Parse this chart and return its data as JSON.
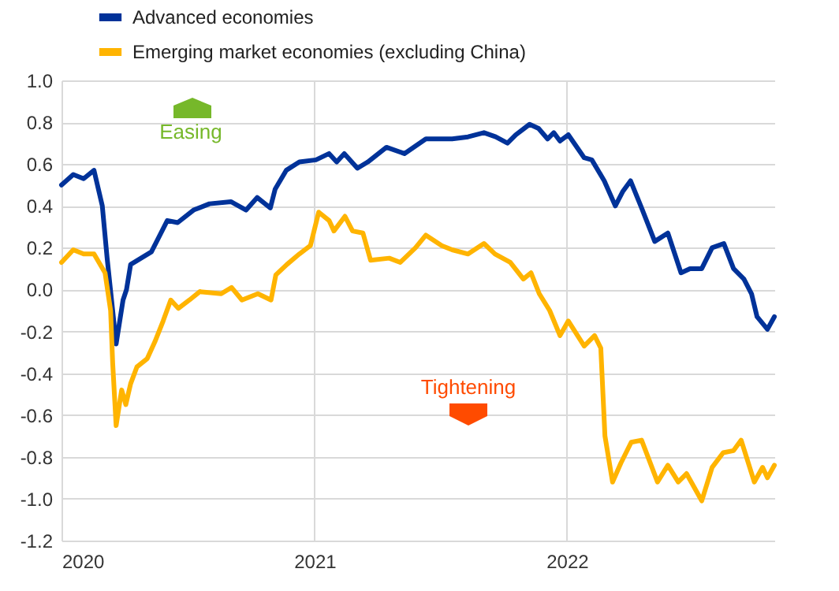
{
  "chart_data": {
    "type": "line",
    "xlim": [
      "2020-01-01",
      "2022-10-28"
    ],
    "xticks": [
      "2020",
      "2021",
      "2022"
    ],
    "ylim": [
      -1.2,
      1.0
    ],
    "yticks": [
      {
        "value": -1.2,
        "label": "-1.2"
      },
      {
        "value": -1.0,
        "label": "-1.0"
      },
      {
        "value": -0.8,
        "label": "-0.8"
      },
      {
        "value": -0.6,
        "label": "-0.6"
      },
      {
        "value": -0.4,
        "label": "-0.4"
      },
      {
        "value": -0.2,
        "label": "-0.2"
      },
      {
        "value": 0,
        "label": "0.0"
      },
      {
        "value": 0.2,
        "label": "0.2"
      },
      {
        "value": 0.4,
        "label": "0.4"
      },
      {
        "value": 0.6,
        "label": "0.6"
      },
      {
        "value": 0.8,
        "label": "0.8"
      },
      {
        "value": 1.0,
        "label": "1.0"
      }
    ],
    "grid": true,
    "legend": "top left",
    "line_style": "solid",
    "marker": "none",
    "annotations": [
      "Easing",
      "Tightening"
    ],
    "series": [
      {
        "name": "Advanced economies",
        "color": "#003299",
        "x": [
          "2020-01-01",
          "2020-01-18",
          "2020-02-02",
          "2020-02-17",
          "2020-02-29",
          "2020-03-07",
          "2020-03-15",
          "2020-03-20",
          "2020-03-30",
          "2020-04-04",
          "2020-04-10",
          "2020-04-25",
          "2020-05-10",
          "2020-06-02",
          "2020-06-17",
          "2020-07-10",
          "2020-08-02",
          "2020-09-02",
          "2020-09-24",
          "2020-10-10",
          "2020-10-29",
          "2020-11-05",
          "2020-11-21",
          "2020-12-10",
          "2021-01-03",
          "2021-01-22",
          "2021-02-02",
          "2021-02-13",
          "2021-03-04",
          "2021-03-19",
          "2021-04-15",
          "2021-05-11",
          "2021-06-11",
          "2021-07-19",
          "2021-08-11",
          "2021-09-03",
          "2021-09-20",
          "2021-10-07",
          "2021-10-19",
          "2021-11-08",
          "2021-11-21",
          "2021-12-04",
          "2021-12-13",
          "2021-12-22",
          "2022-01-03",
          "2022-01-26",
          "2022-02-06",
          "2022-02-24",
          "2022-03-12",
          "2022-03-23",
          "2022-04-03",
          "2022-04-19",
          "2022-05-08",
          "2022-05-27",
          "2022-06-15",
          "2022-06-28",
          "2022-07-15",
          "2022-07-30",
          "2022-08-16",
          "2022-08-30",
          "2022-09-14",
          "2022-09-25",
          "2022-10-03",
          "2022-10-18",
          "2022-10-28"
        ],
        "values": [
          0.5,
          0.55,
          0.53,
          0.57,
          0.4,
          0.15,
          -0.1,
          -0.26,
          -0.05,
          0.0,
          0.12,
          0.15,
          0.18,
          0.33,
          0.32,
          0.38,
          0.41,
          0.42,
          0.38,
          0.44,
          0.39,
          0.48,
          0.57,
          0.61,
          0.62,
          0.65,
          0.61,
          0.65,
          0.58,
          0.61,
          0.68,
          0.65,
          0.72,
          0.72,
          0.73,
          0.75,
          0.73,
          0.7,
          0.74,
          0.79,
          0.77,
          0.72,
          0.75,
          0.71,
          0.74,
          0.63,
          0.62,
          0.52,
          0.4,
          0.47,
          0.52,
          0.39,
          0.23,
          0.27,
          0.08,
          0.1,
          0.1,
          0.2,
          0.22,
          0.1,
          0.05,
          -0.02,
          -0.13,
          -0.19,
          -0.13
        ]
      },
      {
        "name": "Emerging market economies (excluding China)",
        "color": "#ffb400",
        "x": [
          "2020-01-01",
          "2020-01-18",
          "2020-02-02",
          "2020-02-17",
          "2020-03-04",
          "2020-03-12",
          "2020-03-15",
          "2020-03-20",
          "2020-03-28",
          "2020-04-03",
          "2020-04-10",
          "2020-04-19",
          "2020-05-04",
          "2020-05-15",
          "2020-05-27",
          "2020-06-07",
          "2020-06-18",
          "2020-07-04",
          "2020-07-19",
          "2020-08-19",
          "2020-09-03",
          "2020-09-18",
          "2020-10-11",
          "2020-10-30",
          "2020-11-06",
          "2020-11-22",
          "2020-12-10",
          "2020-12-26",
          "2021-01-07",
          "2021-01-22",
          "2021-01-29",
          "2021-02-14",
          "2021-02-25",
          "2021-03-12",
          "2021-03-23",
          "2021-04-19",
          "2021-05-05",
          "2021-05-27",
          "2021-06-11",
          "2021-07-04",
          "2021-07-19",
          "2021-08-11",
          "2021-09-03",
          "2021-09-19",
          "2021-10-11",
          "2021-10-30",
          "2021-11-10",
          "2021-11-22",
          "2021-12-07",
          "2021-12-22",
          "2022-01-03",
          "2022-01-26",
          "2022-02-10",
          "2022-02-19",
          "2022-02-25",
          "2022-03-08",
          "2022-03-20",
          "2022-04-04",
          "2022-04-19",
          "2022-05-12",
          "2022-05-27",
          "2022-06-11",
          "2022-06-23",
          "2022-07-15",
          "2022-07-30",
          "2022-08-15",
          "2022-08-30",
          "2022-09-10",
          "2022-09-29",
          "2022-10-11",
          "2022-10-18",
          "2022-10-28"
        ],
        "values": [
          0.13,
          0.19,
          0.17,
          0.17,
          0.08,
          -0.1,
          -0.35,
          -0.65,
          -0.48,
          -0.55,
          -0.45,
          -0.37,
          -0.33,
          -0.25,
          -0.15,
          -0.05,
          -0.09,
          -0.05,
          -0.01,
          -0.02,
          0.01,
          -0.05,
          -0.02,
          -0.05,
          0.07,
          0.12,
          0.17,
          0.21,
          0.37,
          0.33,
          0.28,
          0.35,
          0.28,
          0.27,
          0.14,
          0.15,
          0.13,
          0.2,
          0.26,
          0.21,
          0.19,
          0.17,
          0.22,
          0.17,
          0.13,
          0.05,
          0.08,
          -0.02,
          -0.1,
          -0.22,
          -0.15,
          -0.27,
          -0.22,
          -0.28,
          -0.7,
          -0.92,
          -0.83,
          -0.73,
          -0.72,
          -0.92,
          -0.84,
          -0.92,
          -0.88,
          -1.01,
          -0.85,
          -0.78,
          -0.77,
          -0.72,
          -0.92,
          -0.85,
          -0.9,
          -0.84
        ]
      }
    ]
  }
}
